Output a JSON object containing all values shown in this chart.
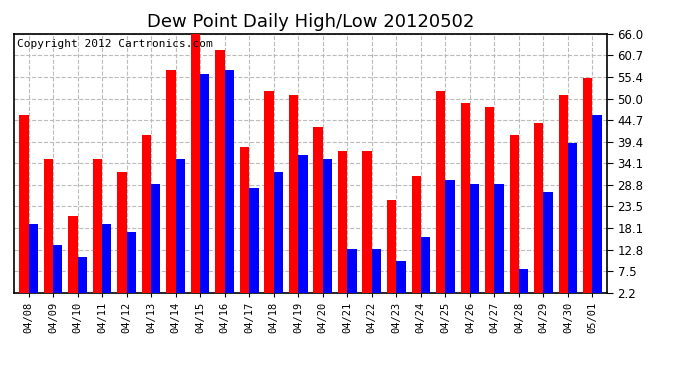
{
  "title": "Dew Point Daily High/Low 20120502",
  "copyright": "Copyright 2012 Cartronics.com",
  "categories": [
    "04/08",
    "04/09",
    "04/10",
    "04/11",
    "04/12",
    "04/13",
    "04/14",
    "04/15",
    "04/16",
    "04/17",
    "04/18",
    "04/19",
    "04/20",
    "04/21",
    "04/22",
    "04/23",
    "04/24",
    "04/25",
    "04/26",
    "04/27",
    "04/28",
    "04/29",
    "04/30",
    "05/01"
  ],
  "highs": [
    46.0,
    35.0,
    21.0,
    35.0,
    32.0,
    41.0,
    57.0,
    66.0,
    62.0,
    38.0,
    52.0,
    51.0,
    43.0,
    37.0,
    37.0,
    25.0,
    31.0,
    52.0,
    49.0,
    48.0,
    41.0,
    44.0,
    51.0,
    55.0
  ],
  "lows": [
    19.0,
    14.0,
    11.0,
    19.0,
    17.0,
    29.0,
    35.0,
    56.0,
    57.0,
    28.0,
    32.0,
    36.0,
    35.0,
    13.0,
    13.0,
    10.0,
    16.0,
    30.0,
    29.0,
    29.0,
    8.0,
    27.0,
    39.0,
    46.0
  ],
  "high_color": "#ff0000",
  "low_color": "#0000ff",
  "bar_width": 0.38,
  "ylim": [
    2.2,
    66.0
  ],
  "yticks": [
    2.2,
    7.5,
    12.8,
    18.1,
    23.5,
    28.8,
    34.1,
    39.4,
    44.7,
    50.0,
    55.4,
    60.7,
    66.0
  ],
  "grid_color": "#bbbbbb",
  "bg_color": "#ffffff",
  "title_fontsize": 13,
  "copyright_fontsize": 8.0,
  "tick_fontsize": 7.5,
  "ytick_fontsize": 8.5
}
